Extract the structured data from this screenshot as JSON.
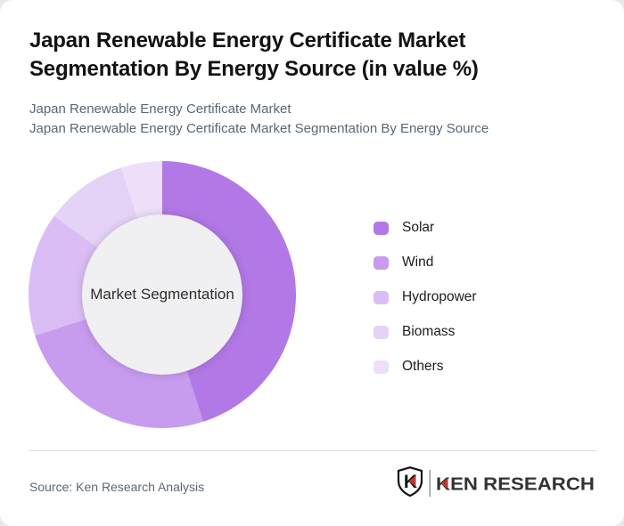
{
  "page": {
    "background_color": "#e9e9e9",
    "card_background": "#ffffff"
  },
  "header": {
    "title": "Japan Renewable Energy Certificate Market Segmentation By Energy Source (in value %)",
    "subtitle_line1": "Japan Renewable Energy Certificate Market",
    "subtitle_line2": "Japan Renewable Energy Certificate Market Segmentation By Energy Source"
  },
  "chart_data": {
    "type": "pie",
    "subtype": "donut",
    "title": "Japan Renewable Energy Certificate Market Segmentation By Energy Source (in value %)",
    "unit": "value %",
    "categories": [
      "Solar",
      "Wind",
      "Hydropower",
      "Biomass",
      "Others"
    ],
    "values": [
      45,
      25,
      15,
      10,
      5
    ],
    "colors": [
      "#b178e6",
      "#c79bee",
      "#dabdf4",
      "#e4d3f7",
      "#eddffa"
    ],
    "start_angle_deg": 0,
    "direction": "clockwise",
    "center_label": "Market Segmentation",
    "hole_color": "#f0eff1",
    "legend_position": "right",
    "data_labels_shown": false
  },
  "footer": {
    "source": "Source: Ken Research Analysis",
    "logo_mark_letter": "K",
    "logo_text": "KEN RESEARCH",
    "logo_accent_color": "#c0392b",
    "logo_text_color": "#333333",
    "logo_outline_color": "#141414",
    "logo_separator_color": "#999999"
  }
}
